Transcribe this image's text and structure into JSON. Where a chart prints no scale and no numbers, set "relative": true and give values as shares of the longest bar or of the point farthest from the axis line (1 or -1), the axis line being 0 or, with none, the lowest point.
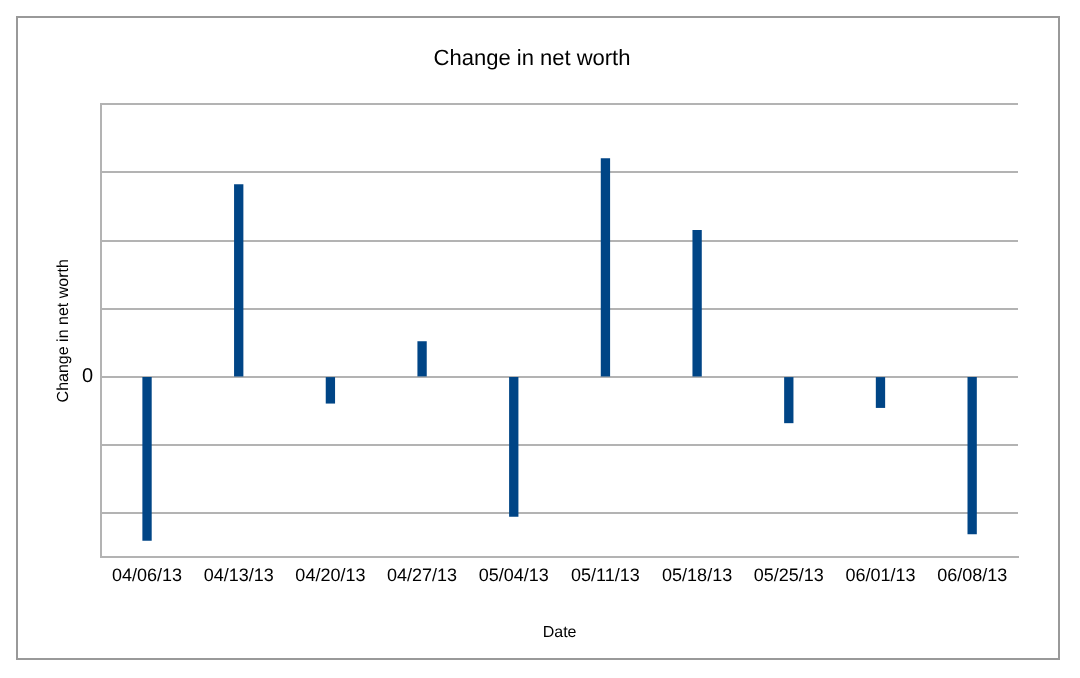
{
  "chart_data": {
    "type": "bar",
    "title": "Change in net worth",
    "xlabel": "Date",
    "ylabel": "Change in net worth",
    "categories": [
      "04/06/13",
      "04/13/13",
      "04/20/13",
      "04/27/13",
      "05/04/13",
      "05/11/13",
      "05/18/13",
      "05/25/13",
      "06/01/13",
      "06/08/13"
    ],
    "values": [
      -0.75,
      0.88,
      -0.12,
      0.16,
      -0.64,
      1,
      0.67,
      -0.21,
      -0.14,
      -0.72
    ],
    "color": "#004586",
    "relative": true,
    "grid": "y",
    "legend": false,
    "annotations": [
      "0"
    ]
  }
}
